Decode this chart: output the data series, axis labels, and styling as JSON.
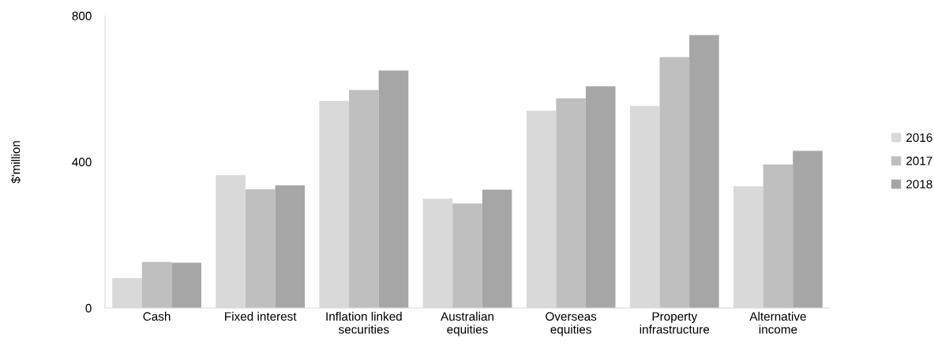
{
  "chart_data": {
    "type": "bar",
    "ylabel": "$'million",
    "categories": [
      "Cash",
      "Fixed interest",
      "Inflation linked\nsecurities",
      "Australian\nequities",
      "Overseas\nequities",
      "Property\ninfrastructure",
      "Alternative\nincome"
    ],
    "series": [
      {
        "name": "2016",
        "color": "#d9d9d9",
        "values": [
          82,
          364,
          567,
          299,
          540,
          553,
          333
        ]
      },
      {
        "name": "2017",
        "color": "#bfbfbf",
        "values": [
          126,
          325,
          597,
          286,
          574,
          687,
          393
        ]
      },
      {
        "name": "2018",
        "color": "#a6a6a6",
        "values": [
          124,
          336,
          650,
          324,
          607,
          747,
          430
        ]
      }
    ],
    "ylim": [
      0,
      800
    ],
    "yticks": [
      0,
      400,
      800
    ],
    "grid": false,
    "legend": "right"
  }
}
